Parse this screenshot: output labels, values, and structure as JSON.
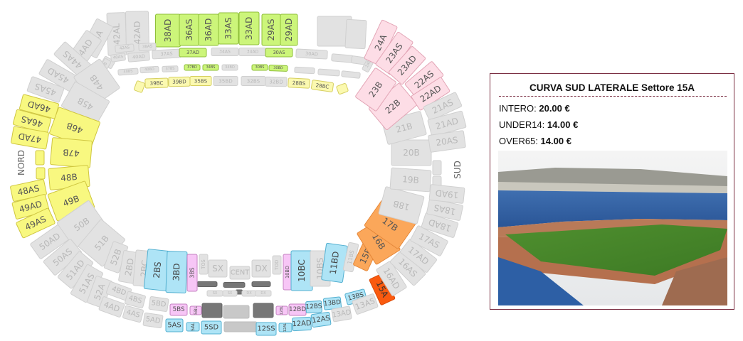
{
  "map": {
    "north_label": "NORD",
    "south_label": "SUD",
    "status_colors": {
      "gray": {
        "fill": "#e2e2e2",
        "stroke": "#d0d0d0",
        "text": "#b9b9b9"
      },
      "yellow": {
        "fill": "#f8f880",
        "stroke": "#cfc640",
        "text": "#555"
      },
      "lightyellow": {
        "fill": "#fbf9b0",
        "stroke": "#d6cf60",
        "text": "#555"
      },
      "green": {
        "fill": "#ccf57a",
        "stroke": "#8fbf3a",
        "text": "#555"
      },
      "pink": {
        "fill": "#fddde6",
        "stroke": "#e3a5b6",
        "text": "#555"
      },
      "blue": {
        "fill": "#aee4f6",
        "stroke": "#52afd0",
        "text": "#444"
      },
      "magenta": {
        "fill": "#f7c6f6",
        "stroke": "#c483c2",
        "text": "#555"
      },
      "orange": {
        "fill": "#fba75a",
        "stroke": "#e5883a",
        "text": "#555"
      },
      "selected": {
        "fill": "#fa5a0f",
        "stroke": "#d84a08",
        "text": "#333"
      },
      "dark": {
        "fill": "#777777",
        "stroke": "#666666",
        "text": "#fff"
      },
      "light": {
        "fill": "#c8c8c8",
        "stroke": "#bbbbbb",
        "text": "#fff"
      }
    },
    "sections": [
      {
        "label": "42AL",
        "status": "gray"
      },
      {
        "label": "42AD",
        "status": "gray"
      },
      {
        "label": "38AD",
        "status": "green"
      },
      {
        "label": "36AS",
        "status": "green"
      },
      {
        "label": "36AD",
        "status": "green"
      },
      {
        "label": "33AS",
        "status": "green"
      },
      {
        "label": "33AD",
        "status": "green"
      },
      {
        "label": "29AS",
        "status": "green"
      },
      {
        "label": "29AD",
        "status": "green"
      },
      {
        "label": "42AS",
        "status": "gray"
      },
      {
        "label": "38AS",
        "status": "gray"
      },
      {
        "label": "40AS",
        "status": "gray"
      },
      {
        "label": "40AD",
        "status": "gray"
      },
      {
        "label": "37AS",
        "status": "gray"
      },
      {
        "label": "37AD",
        "status": "green"
      },
      {
        "label": "34AS",
        "status": "gray"
      },
      {
        "label": "34AD",
        "status": "gray"
      },
      {
        "label": "30AS",
        "status": "green"
      },
      {
        "label": "30AD",
        "status": "gray"
      },
      {
        "label": "40BS",
        "status": "gray"
      },
      {
        "label": "40BD",
        "status": "gray"
      },
      {
        "label": "37BS",
        "status": "gray"
      },
      {
        "label": "37BD",
        "status": "green"
      },
      {
        "label": "34BS",
        "status": "green"
      },
      {
        "label": "34BD",
        "status": "gray"
      },
      {
        "label": "30BS",
        "status": "green"
      },
      {
        "label": "30BD",
        "status": "green"
      },
      {
        "label": "39BC",
        "status": "lightyellow"
      },
      {
        "label": "39BD",
        "status": "lightyellow"
      },
      {
        "label": "35BS",
        "status": "lightyellow"
      },
      {
        "label": "35BD",
        "status": "gray"
      },
      {
        "label": "32BS",
        "status": "gray"
      },
      {
        "label": "32BD",
        "status": "gray"
      },
      {
        "label": "28BS",
        "status": "lightyellow"
      },
      {
        "label": "28BC",
        "status": "lightyellow"
      },
      {
        "label": "43A",
        "status": "gray"
      },
      {
        "label": "44AD",
        "status": "gray"
      },
      {
        "label": "44AS",
        "status": "gray"
      },
      {
        "label": "43B",
        "status": "gray"
      },
      {
        "label": "45AD",
        "status": "gray"
      },
      {
        "label": "45AS",
        "status": "gray"
      },
      {
        "label": "44B",
        "status": "gray"
      },
      {
        "label": "45B",
        "status": "gray"
      },
      {
        "label": "46AD",
        "status": "yellow"
      },
      {
        "label": "46AS",
        "status": "yellow"
      },
      {
        "label": "47AD",
        "status": "yellow"
      },
      {
        "label": "46B",
        "status": "yellow"
      },
      {
        "label": "47B",
        "status": "yellow"
      },
      {
        "label": "48B",
        "status": "yellow"
      },
      {
        "label": "48AS",
        "status": "yellow"
      },
      {
        "label": "49AD",
        "status": "yellow"
      },
      {
        "label": "49B",
        "status": "yellow"
      },
      {
        "label": "49AS",
        "status": "yellow"
      },
      {
        "label": "50AD",
        "status": "gray"
      },
      {
        "label": "50B",
        "status": "gray"
      },
      {
        "label": "50AS",
        "status": "gray"
      },
      {
        "label": "51B",
        "status": "gray"
      },
      {
        "label": "51AD",
        "status": "gray"
      },
      {
        "label": "51AS",
        "status": "gray"
      },
      {
        "label": "52A",
        "status": "gray"
      },
      {
        "label": "52B",
        "status": "gray"
      },
      {
        "label": "2BD",
        "status": "gray"
      },
      {
        "label": "2BC",
        "status": "gray"
      },
      {
        "label": "4BD",
        "status": "gray"
      },
      {
        "label": "4AD",
        "status": "gray"
      },
      {
        "label": "4BS",
        "status": "gray"
      },
      {
        "label": "4AS",
        "status": "gray"
      },
      {
        "label": "5BD",
        "status": "gray"
      },
      {
        "label": "5AD",
        "status": "gray"
      },
      {
        "label": "2BS",
        "status": "blue"
      },
      {
        "label": "3BD",
        "status": "blue"
      },
      {
        "label": "3BS",
        "status": "magenta"
      },
      {
        "label": "TOS",
        "status": "gray"
      },
      {
        "label": "SX",
        "status": "gray"
      },
      {
        "label": "CENT",
        "status": "gray"
      },
      {
        "label": "DX",
        "status": "gray"
      },
      {
        "label": "TOD",
        "status": "gray"
      },
      {
        "label": "10BD",
        "status": "magenta"
      },
      {
        "label": "10BC",
        "status": "blue"
      },
      {
        "label": "10BS",
        "status": "gray"
      },
      {
        "label": "11BD",
        "status": "blue"
      },
      {
        "label": "11BS",
        "status": "gray"
      },
      {
        "label": "SX",
        "status": "gray"
      },
      {
        "label": "SX",
        "status": "gray"
      },
      {
        "label": "DX",
        "status": "gray"
      },
      {
        "label": "DX",
        "status": "gray"
      },
      {
        "label": "5BS",
        "status": "magenta"
      },
      {
        "label": "5BL",
        "status": "magenta"
      },
      {
        "label": "12BL",
        "status": "magenta"
      },
      {
        "label": "12BD",
        "status": "magenta"
      },
      {
        "label": "12BS",
        "status": "blue"
      },
      {
        "label": "13BD",
        "status": "blue"
      },
      {
        "label": "13BS",
        "status": "blue"
      },
      {
        "label": "5AS",
        "status": "blue"
      },
      {
        "label": "5AL",
        "status": "blue"
      },
      {
        "label": "5SD",
        "status": "blue"
      },
      {
        "label": "12SS",
        "status": "blue"
      },
      {
        "label": "12AL",
        "status": "blue"
      },
      {
        "label": "12AD",
        "status": "blue"
      },
      {
        "label": "12AS",
        "status": "blue"
      },
      {
        "label": "13AD",
        "status": "gray"
      },
      {
        "label": "13AS",
        "status": "gray"
      },
      {
        "label": "15A",
        "status": "selected"
      },
      {
        "label": "16AD",
        "status": "gray"
      },
      {
        "label": "16AS",
        "status": "gray"
      },
      {
        "label": "17AD",
        "status": "gray"
      },
      {
        "label": "17AS",
        "status": "gray"
      },
      {
        "label": "18AD",
        "status": "gray"
      },
      {
        "label": "18AS",
        "status": "gray"
      },
      {
        "label": "19AD",
        "status": "gray"
      },
      {
        "label": "15B",
        "status": "orange"
      },
      {
        "label": "16B",
        "status": "orange"
      },
      {
        "label": "17B",
        "status": "orange"
      },
      {
        "label": "18B",
        "status": "gray"
      },
      {
        "label": "19B",
        "status": "gray"
      },
      {
        "label": "20B",
        "status": "gray"
      },
      {
        "label": "21B",
        "status": "gray"
      },
      {
        "label": "22B",
        "status": "pink"
      },
      {
        "label": "23B",
        "status": "pink"
      },
      {
        "label": "24B",
        "status": "gray"
      },
      {
        "label": "24A",
        "status": "pink"
      },
      {
        "label": "23AS",
        "status": "pink"
      },
      {
        "label": "23AD",
        "status": "pink"
      },
      {
        "label": "22AS",
        "status": "pink"
      },
      {
        "label": "22AD",
        "status": "pink"
      },
      {
        "label": "21AS",
        "status": "gray"
      },
      {
        "label": "21AD",
        "status": "gray"
      },
      {
        "label": "20AS",
        "status": "gray"
      }
    ]
  },
  "info_panel": {
    "title": "CURVA SUD LATERALE Settore 15A",
    "prices": [
      {
        "label": "INTERO:",
        "value": "20.00 €"
      },
      {
        "label": "UNDER14:",
        "value": "14.00 €"
      },
      {
        "label": "OVER65:",
        "value": "14.00 €"
      }
    ],
    "border_color": "#7a2e42"
  }
}
